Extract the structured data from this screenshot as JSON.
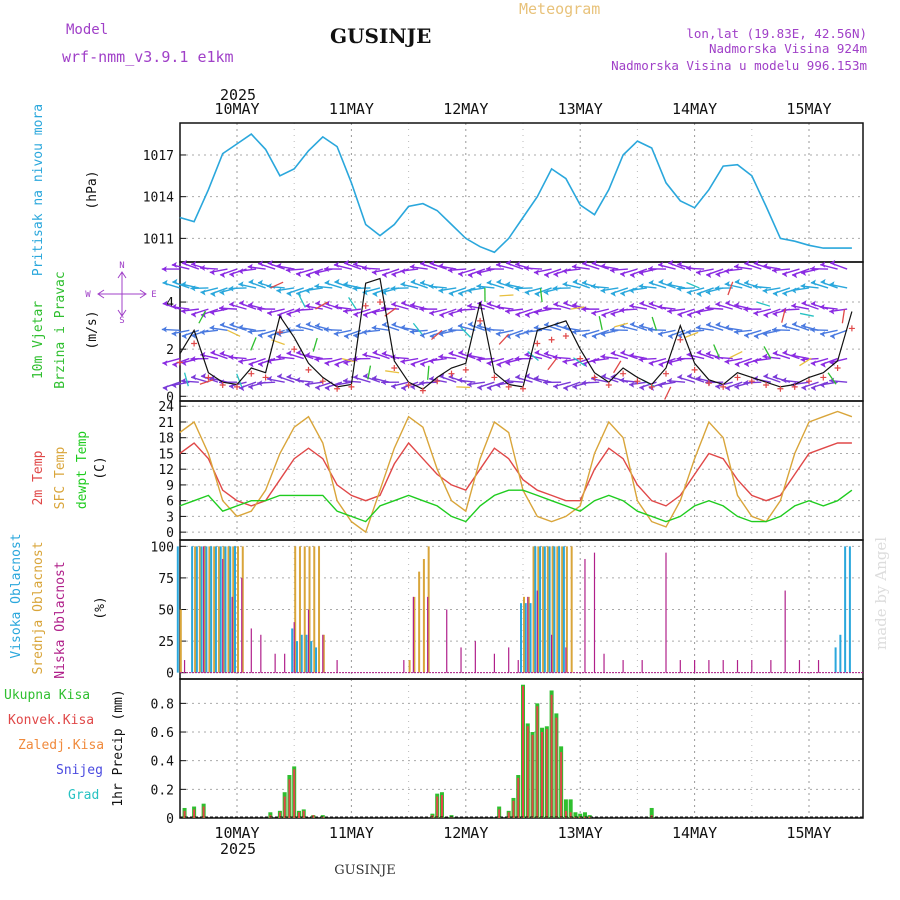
{
  "header": {
    "model_label": "Model",
    "model_name": "wrf-nmm_v3.9.1 e1km",
    "station": "GUSINJE",
    "product": "Meteogram",
    "lonlat": "lon,lat (19.83E, 42.56N)",
    "elevation": "Nadmorska Visina 924m",
    "model_elevation": "Nadmorska Visina u modelu 996.153m",
    "footer_station": "GUSINJE",
    "credit": "made by Angel"
  },
  "colors": {
    "pressure": "#2aa7dc",
    "wind_green": "#2fbf2f",
    "temp2m": "#e04848",
    "sfc": "#d9a53a",
    "dewpt": "#1fcc1f",
    "high_cloud": "#2aa7dc",
    "mid_cloud": "#d9a53a",
    "low_cloud": "#b0208a",
    "total_precip": "#2fbf2f",
    "conv_precip": "#e04848",
    "frz_precip": "#f08a3c",
    "snow": "#4a4ae0",
    "hail": "#27c2c2",
    "purple": "#a040c8"
  },
  "chart_data": [
    {
      "type": "line",
      "panel": "pressure",
      "ylabel": "Pritisak na nivou mora",
      "units": "(hPa)",
      "ylim": [
        1009.3,
        1019.3
      ],
      "yticks": [
        1011,
        1014,
        1017
      ],
      "x_unit": "hours since 2025-05-09 12:00",
      "x": [
        0,
        3,
        6,
        9,
        12,
        15,
        18,
        21,
        24,
        27,
        30,
        33,
        36,
        39,
        42,
        45,
        48,
        51,
        54,
        57,
        60,
        63,
        66,
        69,
        72,
        75,
        78,
        81,
        84,
        87,
        90,
        93,
        96,
        99,
        102,
        105,
        108,
        111,
        114,
        117,
        120,
        123,
        126,
        129,
        132,
        135,
        141
      ],
      "series": [
        {
          "values": [
            1012.5,
            1012.2,
            1014.5,
            1017.1,
            1017.8,
            1018.5,
            1017.4,
            1015.5,
            1016.0,
            1017.3,
            1018.3,
            1017.6,
            1015.0,
            1012.0,
            1011.2,
            1012.0,
            1013.3,
            1013.5,
            1013.0,
            1012.0,
            1011.0,
            1010.4,
            1010.0,
            1011.0,
            1012.5,
            1014.0,
            1016.0,
            1015.3,
            1013.4,
            1012.7,
            1014.5,
            1017.0,
            1018.0,
            1017.5,
            1015.0,
            1013.7,
            1013.2,
            1014.5,
            1016.2,
            1016.3,
            1015.5,
            1013.3,
            1011.0,
            1010.8,
            1010.5,
            1010.3,
            1010.3
          ]
        }
      ]
    },
    {
      "type": "line",
      "panel": "wind",
      "ylabel": "10m Vjetar Brzina i Pravac",
      "units": "(m/s)",
      "compass": [
        "N",
        "W",
        "E",
        "S"
      ],
      "ylim": [
        -0.2,
        5.7
      ],
      "yticks": [
        0,
        2,
        4
      ],
      "x_unit": "hours since 2025-05-09 12:00",
      "x": [
        0,
        3,
        6,
        9,
        12,
        15,
        18,
        21,
        24,
        27,
        30,
        33,
        36,
        39,
        42,
        45,
        48,
        51,
        54,
        57,
        60,
        63,
        66,
        69,
        72,
        75,
        78,
        81,
        84,
        87,
        90,
        93,
        96,
        99,
        102,
        105,
        108,
        111,
        114,
        117,
        120,
        123,
        126,
        129,
        132,
        135,
        138,
        141
      ],
      "series": [
        {
          "values": [
            1.8,
            2.8,
            1.0,
            0.6,
            0.5,
            1.2,
            1.0,
            3.4,
            2.5,
            1.4,
            0.8,
            0.4,
            0.5,
            4.8,
            5.0,
            1.5,
            0.6,
            0.3,
            0.8,
            1.2,
            1.4,
            4.0,
            1.0,
            0.5,
            0.4,
            2.8,
            3.0,
            3.2,
            2.0,
            1.0,
            0.6,
            1.2,
            0.8,
            0.5,
            1.2,
            3.0,
            1.4,
            0.7,
            0.5,
            1.0,
            0.8,
            0.6,
            0.4,
            0.5,
            0.8,
            1.0,
            1.5,
            3.6
          ]
        }
      ]
    },
    {
      "type": "line",
      "panel": "temperature",
      "ylabels": [
        "2m Temp",
        "SFC Temp",
        "dewpt Temp"
      ],
      "units": "(C)",
      "ylim": [
        -1.5,
        25
      ],
      "yticks": [
        0,
        3,
        6,
        9,
        12,
        15,
        18,
        21,
        24
      ],
      "x_unit": "hours since 2025-05-09 12:00",
      "x": [
        0,
        3,
        6,
        9,
        12,
        15,
        18,
        21,
        24,
        27,
        30,
        33,
        36,
        39,
        42,
        45,
        48,
        51,
        54,
        57,
        60,
        63,
        66,
        69,
        72,
        75,
        78,
        81,
        84,
        87,
        90,
        93,
        96,
        99,
        102,
        105,
        108,
        111,
        114,
        117,
        120,
        123,
        126,
        129,
        132,
        135,
        138,
        141
      ],
      "series": [
        {
          "name": "2m Temp",
          "values": [
            15,
            17,
            14,
            8,
            6,
            5,
            6,
            10,
            14,
            16,
            14,
            9,
            7,
            6,
            7,
            13,
            17,
            14,
            11,
            9,
            8,
            12,
            16,
            14,
            10,
            8,
            7,
            6,
            6,
            12,
            16,
            14,
            9,
            6,
            5,
            7,
            11,
            15,
            14,
            10,
            7,
            6,
            7,
            11,
            15,
            16,
            17,
            17
          ]
        },
        {
          "name": "SFC Temp",
          "values": [
            19,
            21,
            15,
            6,
            3,
            4,
            8,
            15,
            20,
            22,
            17,
            6,
            2,
            0,
            8,
            16,
            22,
            20,
            12,
            6,
            4,
            14,
            21,
            19,
            8,
            3,
            2,
            3,
            5,
            15,
            21,
            18,
            6,
            2,
            1,
            6,
            14,
            21,
            18,
            7,
            3,
            2,
            6,
            15,
            21,
            22,
            23,
            22
          ]
        },
        {
          "name": "dewpt Temp",
          "values": [
            5,
            6,
            7,
            4,
            5,
            6,
            6,
            7,
            7,
            7,
            7,
            4,
            3,
            2,
            5,
            6,
            7,
            6,
            5,
            3,
            2,
            5,
            7,
            8,
            8,
            7,
            6,
            5,
            4,
            6,
            7,
            6,
            4,
            3,
            2,
            3,
            5,
            6,
            5,
            3,
            2,
            2,
            3,
            5,
            6,
            5,
            6,
            8
          ]
        }
      ]
    },
    {
      "type": "bar",
      "panel": "clouds",
      "ylabels": [
        "Visoka Oblacnost",
        "Srednja Oblacnost",
        "Niska Oblacnost"
      ],
      "units": "(%)",
      "ylim": [
        -5,
        105
      ],
      "yticks": [
        0,
        25,
        50,
        75,
        100
      ],
      "x_unit": "hours since 2025-05-09 12:00",
      "series": [
        {
          "name": "Visoka Oblacnost",
          "x": [
            0,
            3,
            4,
            5,
            6,
            7,
            8,
            9,
            10,
            11,
            12,
            24,
            25,
            26,
            27,
            28,
            29,
            72,
            73,
            74,
            75,
            76,
            77,
            78,
            79,
            80,
            81,
            138,
            139,
            140,
            141
          ],
          "values": [
            100,
            100,
            100,
            100,
            100,
            100,
            100,
            100,
            100,
            100,
            100,
            35,
            25,
            30,
            30,
            25,
            20,
            55,
            55,
            55,
            100,
            100,
            100,
            100,
            100,
            100,
            100,
            20,
            30,
            100,
            100
          ]
        },
        {
          "name": "Srednja Oblacnost",
          "x": [
            0,
            1,
            2,
            3,
            4,
            5,
            6,
            7,
            8,
            9,
            10,
            11,
            12,
            13,
            24,
            25,
            26,
            27,
            28,
            29,
            30,
            48,
            49,
            50,
            51,
            52,
            72,
            73,
            74,
            75,
            76,
            77,
            78,
            79,
            80,
            81,
            82
          ],
          "values": [
            50,
            0,
            0,
            100,
            100,
            100,
            100,
            100,
            100,
            100,
            100,
            100,
            100,
            100,
            100,
            100,
            100,
            100,
            100,
            100,
            30,
            10,
            60,
            80,
            90,
            100,
            60,
            60,
            100,
            100,
            100,
            100,
            100,
            100,
            100,
            100,
            100
          ]
        },
        {
          "name": "Niska Oblacnost",
          "x": [
            1,
            5,
            9,
            11,
            13,
            15,
            17,
            20,
            22,
            24,
            27,
            30,
            33,
            47,
            49,
            52,
            56,
            59,
            62,
            66,
            69,
            71,
            73,
            75,
            78,
            81,
            85,
            87,
            89,
            93,
            97,
            102,
            105,
            108,
            111,
            114,
            117,
            120,
            124,
            127,
            130,
            134
          ],
          "values": [
            10,
            100,
            90,
            60,
            75,
            35,
            30,
            15,
            15,
            40,
            50,
            30,
            10,
            10,
            60,
            60,
            50,
            20,
            25,
            15,
            20,
            10,
            60,
            65,
            30,
            20,
            90,
            95,
            15,
            10,
            10,
            95,
            10,
            10,
            10,
            10,
            10,
            10,
            10,
            65,
            10,
            10
          ]
        }
      ]
    },
    {
      "type": "bar",
      "panel": "precipitation",
      "ylabels": [
        "Ukupna Kisa",
        "Konvek.Kisa",
        "Zaledj.Kisa",
        "Snijeg",
        "Grad"
      ],
      "units": "1hr Precip (mm)",
      "ylim": [
        0,
        0.97
      ],
      "yticks": [
        0,
        0.2,
        0.4,
        0.6,
        0.8
      ],
      "x_unit": "hours since 2025-05-09 12:00",
      "x": [
        1,
        3,
        5,
        19,
        21,
        22,
        23,
        24,
        25,
        26,
        28,
        30,
        53,
        54,
        55,
        57,
        67,
        69,
        70,
        71,
        72,
        73,
        74,
        75,
        76,
        77,
        78,
        79,
        80,
        81,
        82,
        83,
        84,
        85,
        86,
        99
      ],
      "series": [
        {
          "name": "Ukupna Kisa",
          "values": [
            0.07,
            0.08,
            0.1,
            0.04,
            0.05,
            0.18,
            0.3,
            0.36,
            0.05,
            0.06,
            0.02,
            0.02,
            0.03,
            0.17,
            0.18,
            0.02,
            0.08,
            0.05,
            0.14,
            0.3,
            0.93,
            0.66,
            0.6,
            0.8,
            0.63,
            0.64,
            0.89,
            0.73,
            0.5,
            0.13,
            0.13,
            0.04,
            0.03,
            0.04,
            0.02,
            0.07
          ]
        },
        {
          "name": "Konvek.Kisa",
          "values": [
            0.05,
            0.06,
            0.08,
            0.02,
            0.04,
            0.15,
            0.27,
            0.34,
            0.04,
            0.05,
            0.02,
            0.01,
            0.02,
            0.15,
            0.16,
            0.01,
            0.06,
            0.04,
            0.12,
            0.28,
            0.92,
            0.64,
            0.58,
            0.78,
            0.6,
            0.62,
            0.86,
            0.7,
            0.46,
            0.05,
            0.04,
            0.01,
            0.01,
            0.01,
            0.01,
            0.02
          ]
        }
      ]
    }
  ],
  "axis": {
    "day_labels": [
      "10MAY",
      "11MAY",
      "12MAY",
      "13MAY",
      "14MAY",
      "15MAY"
    ],
    "year": "2025"
  }
}
